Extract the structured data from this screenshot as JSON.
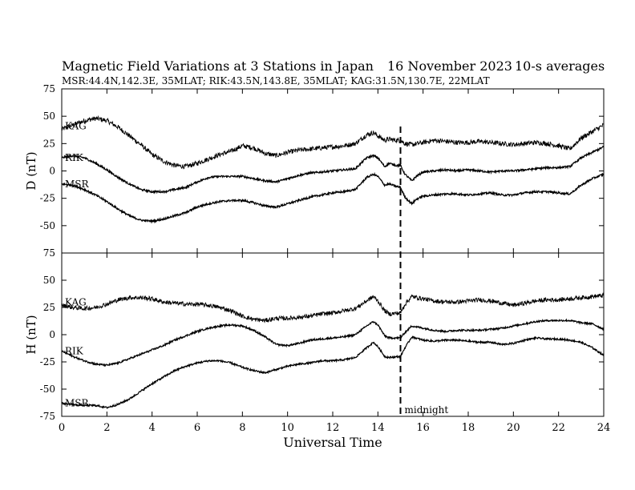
{
  "header": {
    "title": "Magnetic Field Variations at 3 Stations in Japan",
    "date": "16 November 2023",
    "averaging": "10-s averages",
    "stations": "MSR:44.4N,142.3E, 35MLAT;  RIK:43.5N,143.8E, 35MLAT;  KAG:31.5N,130.7E, 22MLAT"
  },
  "chart_data": [
    {
      "type": "line",
      "panel": "top",
      "ylabel": "D (nT)",
      "xlabel": "",
      "xlim": [
        0,
        24
      ],
      "ylim": [
        -75,
        75
      ],
      "yticks": [
        -75,
        -50,
        -25,
        0,
        25,
        50,
        75
      ],
      "xticks": [
        0,
        2,
        4,
        6,
        8,
        10,
        12,
        14,
        16,
        18,
        20,
        22,
        24
      ],
      "series": [
        {
          "name": "KAG",
          "noise": 2.2,
          "x": [
            0,
            0.5,
            1,
            1.5,
            2,
            2.5,
            3,
            3.5,
            4,
            4.5,
            5,
            5.5,
            6,
            6.5,
            7,
            7.5,
            8,
            8.5,
            9,
            9.5,
            10,
            10.5,
            11,
            11.5,
            12,
            12.5,
            13,
            13.5,
            13.8,
            14,
            14.3,
            14.5,
            14.8,
            15,
            15.2,
            15.5,
            16,
            16.5,
            17,
            17.5,
            18,
            18.5,
            19,
            19.5,
            20,
            20.5,
            21,
            21.5,
            22,
            22.5,
            23,
            23.5,
            24
          ],
          "y": [
            38,
            42,
            46,
            48,
            46,
            40,
            32,
            24,
            15,
            9,
            5,
            4,
            7,
            11,
            15,
            18,
            23,
            21,
            16,
            14,
            17,
            19,
            20,
            21,
            22,
            23,
            25,
            33,
            35,
            32,
            28,
            29,
            28,
            28,
            25,
            24,
            26,
            28,
            27,
            26,
            26,
            27,
            26,
            25,
            24,
            25,
            26,
            25,
            23,
            20,
            30,
            36,
            42
          ]
        },
        {
          "name": "RIK",
          "noise": 0.9,
          "x": [
            0,
            0.5,
            1,
            1.5,
            2,
            2.5,
            3,
            3.5,
            4,
            4.5,
            5,
            5.5,
            6,
            6.5,
            7,
            7.5,
            8,
            8.5,
            9,
            9.5,
            10,
            10.5,
            11,
            11.5,
            12,
            12.5,
            13,
            13.5,
            13.8,
            14,
            14.3,
            14.5,
            14.8,
            15,
            15.2,
            15.5,
            15.7,
            16,
            16.5,
            17,
            17.5,
            18,
            18.5,
            19,
            19.5,
            20,
            20.5,
            21,
            21.5,
            22,
            22.5,
            23,
            23.5,
            24
          ],
          "y": [
            12,
            14,
            12,
            7,
            1,
            -6,
            -12,
            -17,
            -19,
            -19,
            -17,
            -15,
            -10,
            -6,
            -5,
            -5,
            -5,
            -7,
            -9,
            -10,
            -7,
            -4,
            -2,
            -1,
            0,
            1,
            2,
            12,
            14,
            12,
            4,
            7,
            5,
            5,
            -3,
            -9,
            -5,
            -1,
            0,
            1,
            0,
            1,
            0,
            -1,
            0,
            0,
            1,
            2,
            3,
            3,
            4,
            12,
            17,
            22
          ]
        },
        {
          "name": "MSR",
          "noise": 0.9,
          "x": [
            0,
            0.5,
            1,
            1.5,
            2,
            2.5,
            3,
            3.5,
            4,
            4.5,
            5,
            5.5,
            6,
            6.5,
            7,
            7.5,
            8,
            8.5,
            9,
            9.5,
            10,
            10.5,
            11,
            11.5,
            12,
            12.5,
            13,
            13.5,
            13.8,
            14,
            14.3,
            14.5,
            14.8,
            15,
            15.2,
            15.5,
            15.7,
            16,
            16.5,
            17,
            17.5,
            18,
            18.5,
            19,
            19.5,
            20,
            20.5,
            21,
            21.5,
            22,
            22.5,
            23,
            23.5,
            24
          ],
          "y": [
            -12,
            -13,
            -17,
            -22,
            -28,
            -35,
            -41,
            -45,
            -46,
            -44,
            -41,
            -38,
            -33,
            -30,
            -28,
            -27,
            -27,
            -29,
            -32,
            -33,
            -30,
            -27,
            -24,
            -22,
            -20,
            -19,
            -17,
            -6,
            -3,
            -5,
            -13,
            -12,
            -14,
            -15,
            -24,
            -30,
            -26,
            -23,
            -22,
            -21,
            -21,
            -22,
            -21,
            -20,
            -22,
            -22,
            -20,
            -19,
            -19,
            -20,
            -21,
            -13,
            -7,
            -3
          ]
        }
      ]
    },
    {
      "type": "line",
      "panel": "bottom",
      "ylabel": "H (nT)",
      "xlabel": "Universal Time",
      "xlim": [
        0,
        24
      ],
      "ylim": [
        -75,
        75
      ],
      "yticks": [
        -75,
        -50,
        -25,
        0,
        25,
        50,
        75
      ],
      "xticks": [
        0,
        2,
        4,
        6,
        8,
        10,
        12,
        14,
        16,
        18,
        20,
        22,
        24
      ],
      "series": [
        {
          "name": "KAG",
          "noise": 2.0,
          "x": [
            0,
            0.5,
            1,
            1.5,
            2,
            2.5,
            3,
            3.5,
            4,
            4.5,
            5,
            5.5,
            6,
            6.5,
            7,
            7.5,
            8,
            8.5,
            9,
            9.5,
            10,
            10.5,
            11,
            11.5,
            12,
            12.5,
            13,
            13.5,
            13.8,
            14,
            14.3,
            14.5,
            15,
            15.2,
            15.5,
            16,
            16.5,
            17,
            17.5,
            18,
            18.5,
            19,
            19.5,
            20,
            20.5,
            21,
            21.5,
            22,
            22.5,
            23,
            23.5,
            24
          ],
          "y": [
            27,
            25,
            24,
            25,
            28,
            32,
            34,
            34,
            33,
            30,
            29,
            28,
            28,
            27,
            25,
            22,
            17,
            14,
            13,
            15,
            15,
            16,
            17,
            19,
            20,
            22,
            24,
            31,
            35,
            31,
            22,
            19,
            20,
            28,
            35,
            33,
            31,
            30,
            30,
            31,
            32,
            31,
            29,
            27,
            29,
            31,
            32,
            32,
            33,
            34,
            35,
            36
          ]
        },
        {
          "name": "RIK",
          "noise": 0.8,
          "x": [
            0,
            0.5,
            1,
            1.5,
            2,
            2.5,
            3,
            3.5,
            4,
            4.5,
            5,
            5.5,
            6,
            6.5,
            7,
            7.5,
            8,
            8.5,
            9,
            9.5,
            10,
            10.5,
            11,
            11.5,
            12,
            12.5,
            13,
            13.5,
            13.8,
            14,
            14.3,
            14.5,
            15,
            15.2,
            15.5,
            16,
            16.5,
            17,
            17.5,
            18,
            18.5,
            19,
            19.5,
            20,
            20.5,
            21,
            21.5,
            22,
            22.5,
            23,
            23.5,
            24
          ],
          "y": [
            -15,
            -20,
            -24,
            -27,
            -28,
            -26,
            -22,
            -18,
            -14,
            -10,
            -5,
            -1,
            3,
            6,
            8,
            9,
            8,
            4,
            -2,
            -9,
            -10,
            -8,
            -5,
            -4,
            -3,
            -2,
            0,
            8,
            12,
            9,
            -1,
            -3,
            -3,
            2,
            8,
            6,
            4,
            3,
            4,
            4,
            4,
            5,
            6,
            8,
            10,
            12,
            13,
            13,
            13,
            11,
            10,
            5
          ]
        },
        {
          "name": "MSR",
          "noise": 0.8,
          "x": [
            0,
            0.5,
            1,
            1.5,
            2,
            2.5,
            3,
            3.5,
            4,
            4.5,
            5,
            5.5,
            6,
            6.5,
            7,
            7.5,
            8,
            8.5,
            9,
            9.5,
            10,
            10.5,
            11,
            11.5,
            12,
            12.5,
            13,
            13.5,
            13.8,
            14,
            14.3,
            14.5,
            15,
            15.2,
            15.5,
            16,
            16.5,
            17,
            17.5,
            18,
            18.5,
            19,
            19.5,
            20,
            20.5,
            21,
            21.5,
            22,
            22.5,
            23,
            23.5,
            24
          ],
          "y": [
            -63,
            -64,
            -65,
            -65,
            -67,
            -64,
            -59,
            -52,
            -45,
            -39,
            -33,
            -29,
            -26,
            -24,
            -24,
            -26,
            -30,
            -33,
            -35,
            -32,
            -29,
            -27,
            -26,
            -24,
            -24,
            -23,
            -21,
            -12,
            -7,
            -11,
            -20,
            -21,
            -20,
            -12,
            -2,
            -5,
            -6,
            -5,
            -5,
            -6,
            -7,
            -7,
            -9,
            -8,
            -5,
            -3,
            -4,
            -4,
            -5,
            -7,
            -12,
            -19
          ]
        }
      ]
    }
  ],
  "annotations": {
    "midnight_label": "midnight",
    "midnight_ut": 15
  }
}
